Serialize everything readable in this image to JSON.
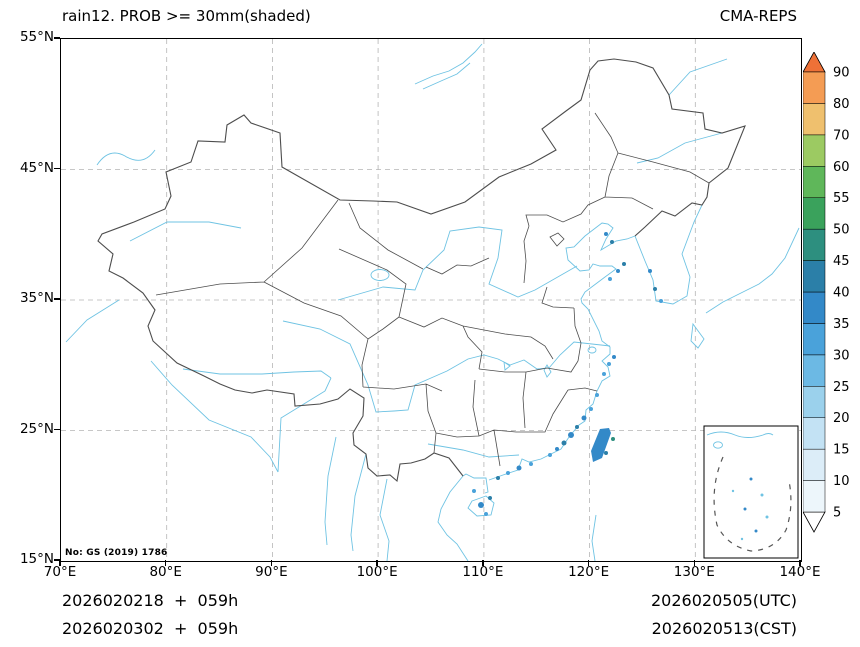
{
  "header": {
    "title": "rain12. PROB >= 30mm(shaded)",
    "model": "CMA-REPS"
  },
  "map": {
    "note": "No: GS (2019) 1786",
    "x_ticks": [
      "70°E",
      "80°E",
      "90°E",
      "100°E",
      "110°E",
      "120°E",
      "130°E",
      "140°E"
    ],
    "y_ticks": [
      "55°N",
      "45°N",
      "35°N",
      "25°N",
      "15°N"
    ],
    "lon_range": [
      70,
      140
    ],
    "lat_range": [
      15,
      55
    ],
    "boundary_color": "#4d4d4d",
    "water_color": "#6fc3e3",
    "shaded_regions": [
      "taiwan-strait",
      "southeast-china-coast",
      "guangdong-coast",
      "hainan-leizhou",
      "bohai-shandong-coast",
      "south-china-sea-inset"
    ]
  },
  "colorbar": {
    "levels": [
      5,
      10,
      15,
      20,
      25,
      30,
      35,
      40,
      45,
      50,
      55,
      60,
      70,
      80,
      90
    ],
    "colors": [
      "#edf6fb",
      "#dcedf8",
      "#c3e2f4",
      "#9bd1ec",
      "#6cb9e4",
      "#4aa2da",
      "#3389c8",
      "#2b7fa8",
      "#2d8f7f",
      "#3aa25c",
      "#5fb75a",
      "#9cca62",
      "#efc06e",
      "#f49c54"
    ],
    "over_color": "#ee7137",
    "under_color": "#ffffff"
  },
  "footer": {
    "left_line1": "2026020218  +  059h",
    "left_line2": "2026020302  +  059h",
    "right_line1": "2026020505(UTC)",
    "right_line2": "2026020513(CST)"
  }
}
